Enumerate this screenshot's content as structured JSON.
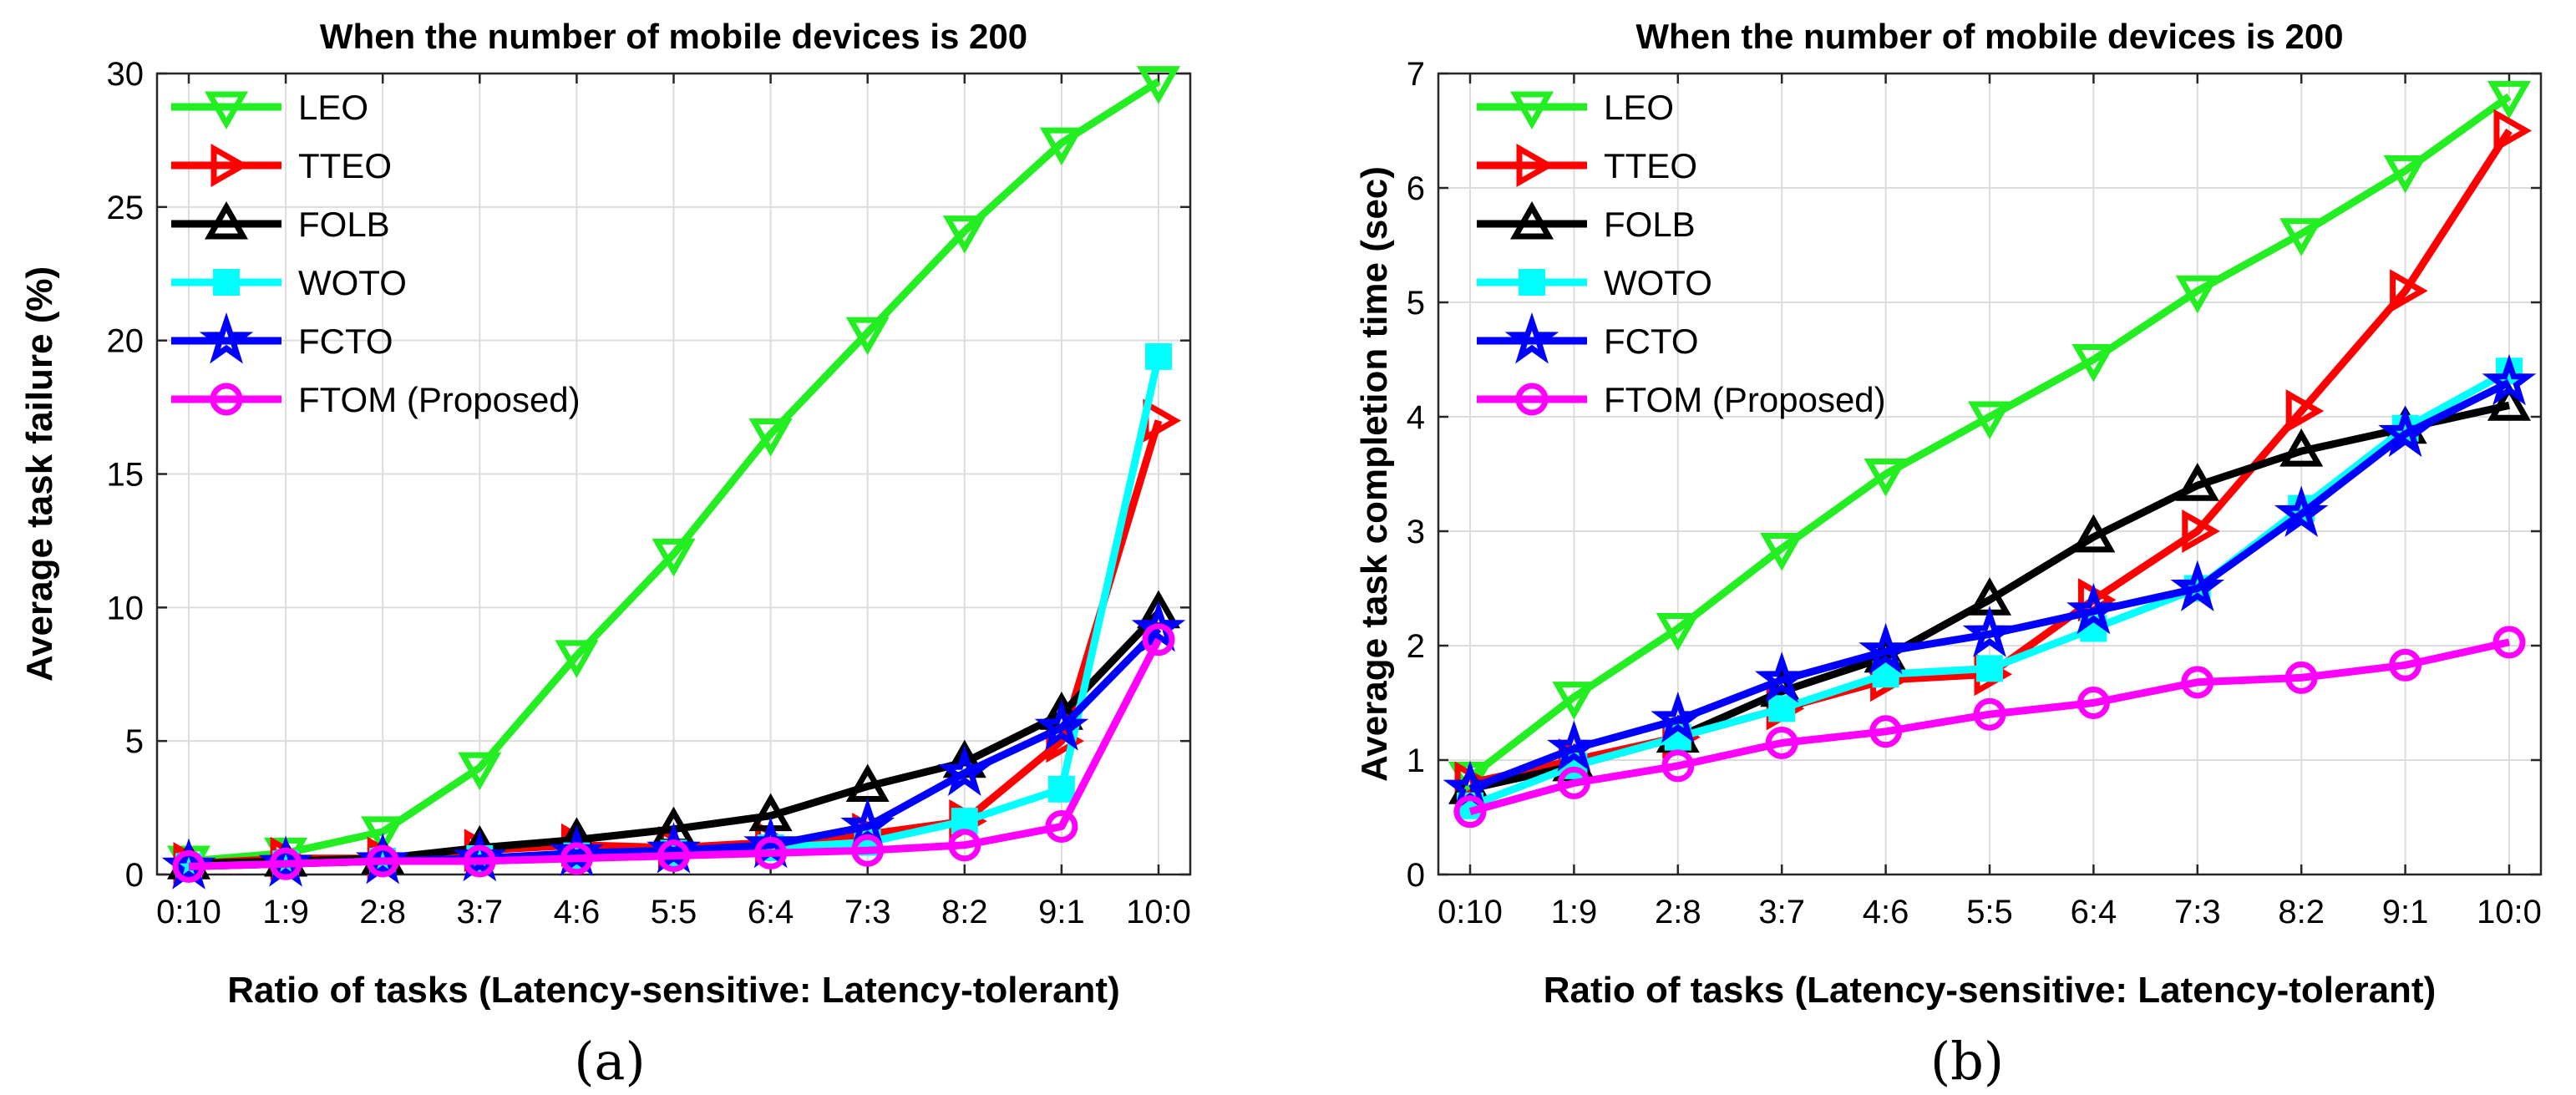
{
  "chart_data": [
    {
      "type": "line",
      "panel_label": "(a)",
      "title": "When the number of mobile devices is 200",
      "xlabel": "Ratio of tasks (Latency-sensitive: Latency-tolerant)",
      "ylabel": "Average task failure (%)",
      "categories": [
        "0:10",
        "1:9",
        "2:8",
        "3:7",
        "4:6",
        "5:5",
        "6:4",
        "7:3",
        "8:2",
        "9:1",
        "10:0"
      ],
      "ylim": [
        0,
        30
      ],
      "yticks": [
        "0",
        "5",
        "10",
        "15",
        "20",
        "25",
        "30"
      ],
      "grid": true,
      "legend_position": "top-left",
      "series": [
        {
          "name": "LEO",
          "color": "#22ee22",
          "marker": "triangle-down",
          "values": [
            0.5,
            0.8,
            1.6,
            4.0,
            8.2,
            12.0,
            16.5,
            20.3,
            24.1,
            27.4,
            29.7
          ]
        },
        {
          "name": "TTEO",
          "color": "#ff0000",
          "marker": "triangle-right",
          "values": [
            0.4,
            0.6,
            0.6,
            0.9,
            1.1,
            1.0,
            1.2,
            1.5,
            2.0,
            5.0,
            17.0
          ]
        },
        {
          "name": "FOLB",
          "color": "#000000",
          "marker": "triangle-up",
          "values": [
            0.4,
            0.5,
            0.6,
            1.0,
            1.3,
            1.7,
            2.2,
            3.3,
            4.2,
            6.0,
            9.8
          ]
        },
        {
          "name": "WOTO",
          "color": "#00ffff",
          "marker": "square",
          "values": [
            0.3,
            0.4,
            0.5,
            0.6,
            0.7,
            0.8,
            1.0,
            1.2,
            2.0,
            3.2,
            19.4
          ]
        },
        {
          "name": "FCTO",
          "color": "#0000ff",
          "marker": "star",
          "values": [
            0.3,
            0.4,
            0.5,
            0.6,
            0.8,
            0.9,
            1.1,
            1.8,
            3.8,
            5.5,
            9.2
          ]
        },
        {
          "name": "FTOM (Proposed)",
          "color": "#ff00ff",
          "marker": "circle",
          "values": [
            0.3,
            0.4,
            0.5,
            0.5,
            0.6,
            0.7,
            0.8,
            0.9,
            1.1,
            1.8,
            8.8
          ]
        }
      ]
    },
    {
      "type": "line",
      "panel_label": "(b)",
      "title": "When the number of mobile devices is 200",
      "xlabel": "Ratio of tasks (Latency-sensitive: Latency-tolerant)",
      "ylabel": "Average task completion time (sec)",
      "categories": [
        "0:10",
        "1:9",
        "2:8",
        "3:7",
        "4:6",
        "5:5",
        "6:4",
        "7:3",
        "8:2",
        "9:1",
        "10:0"
      ],
      "ylim": [
        0,
        7
      ],
      "yticks": [
        "0",
        "1",
        "2",
        "3",
        "4",
        "5",
        "6",
        "7"
      ],
      "grid": true,
      "legend_position": "top-left",
      "series": [
        {
          "name": "LEO",
          "color": "#22ee22",
          "marker": "triangle-down",
          "values": [
            0.85,
            1.55,
            2.15,
            2.85,
            3.5,
            4.0,
            4.5,
            5.1,
            5.6,
            6.15,
            6.8
          ]
        },
        {
          "name": "TTEO",
          "color": "#ff0000",
          "marker": "triangle-right",
          "values": [
            0.8,
            1.0,
            1.2,
            1.45,
            1.7,
            1.75,
            2.4,
            3.0,
            4.05,
            5.1,
            6.5
          ]
        },
        {
          "name": "FOLB",
          "color": "#000000",
          "marker": "triangle-up",
          "values": [
            0.75,
            0.95,
            1.2,
            1.6,
            1.9,
            2.4,
            2.95,
            3.4,
            3.7,
            3.9,
            4.1
          ]
        },
        {
          "name": "WOTO",
          "color": "#00ffff",
          "marker": "square",
          "values": [
            0.6,
            0.95,
            1.2,
            1.45,
            1.75,
            1.8,
            2.15,
            2.5,
            3.2,
            3.9,
            4.4
          ]
        },
        {
          "name": "FCTO",
          "color": "#0000ff",
          "marker": "star",
          "values": [
            0.75,
            1.1,
            1.35,
            1.7,
            1.95,
            2.1,
            2.3,
            2.5,
            3.15,
            3.85,
            4.3
          ]
        },
        {
          "name": "FTOM (Proposed)",
          "color": "#ff00ff",
          "marker": "circle",
          "values": [
            0.55,
            0.8,
            0.95,
            1.15,
            1.25,
            1.4,
            1.5,
            1.68,
            1.72,
            1.83,
            2.03
          ]
        }
      ]
    }
  ]
}
